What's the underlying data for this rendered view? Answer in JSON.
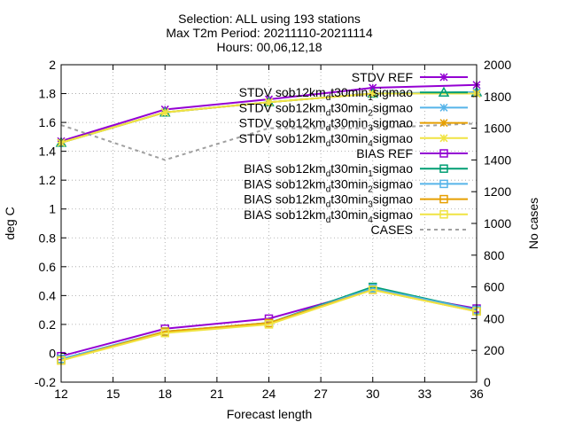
{
  "chart_data": {
    "type": "line",
    "title_lines": [
      "Selection: ALL using    193 stations",
      "Max T2m   Period: 20211110-20211114",
      "Hours: 00,06,12,18"
    ],
    "xlabel": "Forecast length",
    "ylabel": "deg C",
    "y2label": "No cases",
    "xlim": [
      12,
      36
    ],
    "ylim": [
      -0.2,
      2
    ],
    "y2lim": [
      0,
      2000
    ],
    "xticks": [
      "12",
      "15",
      "18",
      "21",
      "24",
      "27",
      "30",
      "33",
      "36"
    ],
    "yticks": [
      "-0.2",
      "0",
      "0.2",
      "0.4",
      "0.6",
      "0.8",
      "1",
      "1.2",
      "1.4",
      "1.6",
      "1.8",
      "2"
    ],
    "y2ticks": [
      "0",
      "200",
      "400",
      "600",
      "800",
      "1000",
      "1200",
      "1400",
      "1600",
      "1800",
      "2000"
    ],
    "grid": true,
    "legend_position": "top-right",
    "x": [
      12,
      18,
      24,
      30,
      36
    ],
    "series": [
      {
        "name": "STDV REF",
        "label_parts": [
          [
            "STDV REF",
            ""
          ]
        ],
        "axis": "y",
        "marker": "star",
        "color": "#9400d3",
        "values": [
          1.47,
          1.69,
          1.76,
          1.84,
          1.86
        ]
      },
      {
        "name": "STDV sob12km_d t30min_1 sigmao",
        "label_parts": [
          [
            "STDV sob12km",
            ""
          ],
          [
            "d",
            "sub"
          ],
          [
            "t30min",
            ""
          ],
          [
            "1",
            "sub"
          ],
          [
            "sigmao",
            ""
          ]
        ],
        "axis": "y",
        "marker": "triangle",
        "color": "#009e73",
        "values": [
          1.46,
          1.67,
          1.74,
          1.8,
          1.81
        ]
      },
      {
        "name": "STDV sob12km_d t30min_2 sigmao",
        "label_parts": [
          [
            "STDV sob12km",
            ""
          ],
          [
            "d",
            "sub"
          ],
          [
            "t30min",
            ""
          ],
          [
            "2",
            "sub"
          ],
          [
            "sigmao",
            ""
          ]
        ],
        "axis": "y",
        "marker": "star",
        "color": "#56b4e9",
        "values": [
          1.46,
          1.67,
          1.74,
          1.8,
          1.81
        ]
      },
      {
        "name": "STDV sob12km_d t30min_3 sigmao",
        "label_parts": [
          [
            "STDV sob12km",
            ""
          ],
          [
            "d",
            "sub"
          ],
          [
            "t30min",
            ""
          ],
          [
            "3",
            "sub"
          ],
          [
            "sigmao",
            ""
          ]
        ],
        "axis": "y",
        "marker": "star",
        "color": "#e69f00",
        "values": [
          1.46,
          1.67,
          1.74,
          1.8,
          1.8
        ]
      },
      {
        "name": "STDV sob12km_d t30min_4 sigmao",
        "label_parts": [
          [
            "STDV sob12km",
            ""
          ],
          [
            "d",
            "sub"
          ],
          [
            "t30min",
            ""
          ],
          [
            "4",
            "sub"
          ],
          [
            "sigmao",
            ""
          ]
        ],
        "axis": "y",
        "marker": "star",
        "color": "#f0e442",
        "values": [
          1.46,
          1.67,
          1.74,
          1.8,
          1.8
        ]
      },
      {
        "name": "BIAS REF",
        "label_parts": [
          [
            "BIAS REF",
            ""
          ]
        ],
        "axis": "y",
        "marker": "square",
        "color": "#9400d3",
        "values": [
          -0.02,
          0.17,
          0.24,
          0.44,
          0.31
        ]
      },
      {
        "name": "BIAS sob12km_d t30min_1 sigmao",
        "label_parts": [
          [
            "BIAS sob12km",
            ""
          ],
          [
            "d",
            "sub"
          ],
          [
            "t30min",
            ""
          ],
          [
            "1",
            "sub"
          ],
          [
            "sigmao",
            ""
          ]
        ],
        "axis": "y",
        "marker": "square",
        "color": "#009e73",
        "values": [
          -0.04,
          0.15,
          0.21,
          0.46,
          0.3
        ]
      },
      {
        "name": "BIAS sob12km_d t30min_2 sigmao",
        "label_parts": [
          [
            "BIAS sob12km",
            ""
          ],
          [
            "d",
            "sub"
          ],
          [
            "t30min",
            ""
          ],
          [
            "2",
            "sub"
          ],
          [
            "sigmao",
            ""
          ]
        ],
        "axis": "y",
        "marker": "square",
        "color": "#56b4e9",
        "values": [
          -0.04,
          0.15,
          0.21,
          0.45,
          0.3
        ]
      },
      {
        "name": "BIAS sob12km_d t30min_3 sigmao",
        "label_parts": [
          [
            "BIAS sob12km",
            ""
          ],
          [
            "d",
            "sub"
          ],
          [
            "t30min",
            ""
          ],
          [
            "3",
            "sub"
          ],
          [
            "sigmao",
            ""
          ]
        ],
        "axis": "y",
        "marker": "square",
        "color": "#e69f00",
        "values": [
          -0.05,
          0.15,
          0.21,
          0.44,
          0.29
        ]
      },
      {
        "name": "BIAS sob12km_d t30min_4 sigmao",
        "label_parts": [
          [
            "BIAS sob12km",
            ""
          ],
          [
            "d",
            "sub"
          ],
          [
            "t30min",
            ""
          ],
          [
            "4",
            "sub"
          ],
          [
            "sigmao",
            ""
          ]
        ],
        "axis": "y",
        "marker": "square",
        "color": "#f0e442",
        "values": [
          -0.05,
          0.14,
          0.2,
          0.44,
          0.29
        ]
      },
      {
        "name": "CASES",
        "label_parts": [
          [
            "CASES",
            ""
          ]
        ],
        "axis": "y2",
        "marker": "none",
        "dashed": true,
        "color": "#a0a0a0",
        "values": [
          1620,
          1400,
          1600,
          1600,
          1630
        ]
      }
    ]
  }
}
